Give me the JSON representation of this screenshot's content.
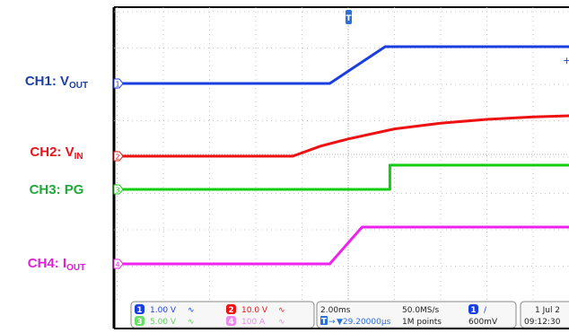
{
  "labels": [
    {
      "prefix": "CH1: V",
      "sub": "OUT",
      "color": "#1f3fa0"
    },
    {
      "prefix": "CH2: V",
      "sub": "IN",
      "color": "#e8141b"
    },
    {
      "prefix": "CH3: PG",
      "sub": "",
      "color": "#22a83a"
    },
    {
      "prefix": "CH4: I",
      "sub": "OUT",
      "color": "#e020d8"
    }
  ],
  "chart_data": {
    "type": "line",
    "title": "",
    "xlabel": "",
    "ylabel": "",
    "time_per_div_ms": 2.0,
    "xlim_ms": [
      -10,
      10
    ],
    "grid": true,
    "series": [
      {
        "name": "CH1: VOUT",
        "color": "#1a3fe0",
        "marker": "1",
        "points": [
          [
            -10,
            0
          ],
          [
            -0.8,
            0
          ],
          [
            1.6,
            1.0
          ],
          [
            10,
            1.0
          ]
        ]
      },
      {
        "name": "CH2: VIN",
        "color": "#ee1111",
        "marker": "2",
        "points": [
          [
            -10,
            0
          ],
          [
            -2.4,
            0
          ],
          [
            -1.2,
            0.35
          ],
          [
            0,
            0.6
          ],
          [
            2,
            0.95
          ],
          [
            4,
            1.15
          ],
          [
            6,
            1.28
          ],
          [
            8,
            1.37
          ],
          [
            10,
            1.42
          ]
        ]
      },
      {
        "name": "CH3: PG",
        "color": "#11cc11",
        "marker": "3",
        "points": [
          [
            -10,
            0
          ],
          [
            1.8,
            0
          ],
          [
            1.8,
            1
          ],
          [
            10,
            1
          ]
        ]
      },
      {
        "name": "CH4: IOUT",
        "color": "#ee22ee",
        "marker": "4",
        "points": [
          [
            -10,
            0
          ],
          [
            -0.8,
            0
          ],
          [
            0.6,
            1
          ],
          [
            10,
            1
          ]
        ]
      }
    ]
  },
  "readout": {
    "ch1_scale": "1.00 V",
    "ch2_scale": "10.0 V",
    "ch3_scale": "5.00 V",
    "ch4_scale": "100 A",
    "timebase": "2.00ms",
    "trigger_pos": "▼29.20000μs",
    "sample_rate": "50.0MS/s",
    "record_length": "1M points",
    "trigger_channel": "1",
    "trigger_level": "600mV",
    "date": "1 Jul 2",
    "time": "09:12:30"
  },
  "colors": {
    "ch1": "#1a3fe0",
    "ch2": "#ee1111",
    "ch3": "#11cc11",
    "ch4": "#ee22ee",
    "grid": "#b9b9b9",
    "border": "#000000"
  }
}
